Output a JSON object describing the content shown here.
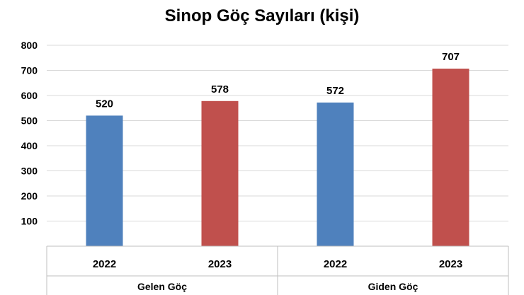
{
  "chart_data": {
    "type": "bar",
    "title": "Sinop Göç Sayıları (kişi)",
    "groups": [
      {
        "label": "Gelen Göç",
        "bars": [
          {
            "label": "2022",
            "value": 520,
            "color": "#4F81BD"
          },
          {
            "label": "2023",
            "value": 578,
            "color": "#C0504D"
          }
        ]
      },
      {
        "label": "Giden Göç",
        "bars": [
          {
            "label": "2022",
            "value": 572,
            "color": "#4F81BD"
          },
          {
            "label": "2023",
            "value": 707,
            "color": "#C0504D"
          }
        ]
      }
    ],
    "yticks": [
      "100",
      "200",
      "300",
      "400",
      "500",
      "600",
      "700",
      "800"
    ],
    "ylim": [
      0,
      800
    ],
    "grid": true,
    "xlabel": "",
    "ylabel": ""
  }
}
